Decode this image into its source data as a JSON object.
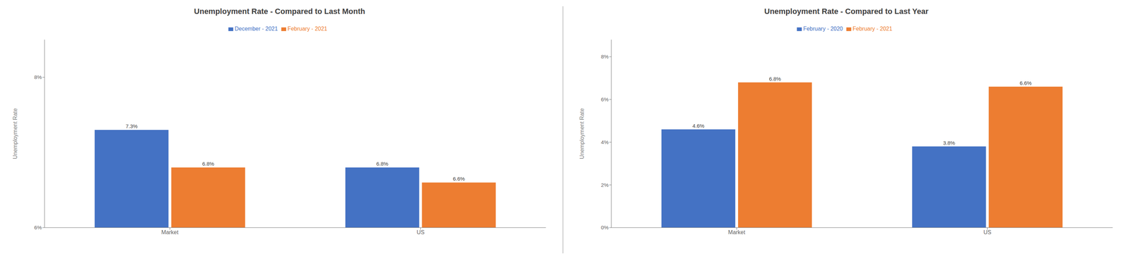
{
  "chart_data": [
    {
      "type": "bar",
      "title": "Unemployment Rate - Compared to Last Month",
      "categories": [
        "Market",
        "US"
      ],
      "series": [
        {
          "name": "December - 2021",
          "color": "#4472C4",
          "values": [
            7.3,
            6.8
          ],
          "value_labels": [
            "7.3%",
            "6.8%"
          ]
        },
        {
          "name": "February - 2021",
          "color": "#ED7D31",
          "values": [
            6.8,
            6.6
          ],
          "value_labels": [
            "6.8%",
            "6.6%"
          ]
        }
      ],
      "ylabel": "Unemployment Rate",
      "ylim": [
        6.0,
        8.5
      ],
      "yticks": [
        {
          "value": 6.0,
          "label": "6%"
        },
        {
          "value": 8.0,
          "label": "8%"
        }
      ],
      "data_labels": true,
      "grid": false,
      "legend": "top"
    },
    {
      "type": "bar",
      "title": "Unemployment Rate - Compared to Last Year",
      "categories": [
        "Market",
        "US"
      ],
      "series": [
        {
          "name": "February - 2020",
          "color": "#4472C4",
          "values": [
            4.6,
            3.8
          ],
          "value_labels": [
            "4.6%",
            "3.8%"
          ]
        },
        {
          "name": "February - 2021",
          "color": "#ED7D31",
          "values": [
            6.8,
            6.6
          ],
          "value_labels": [
            "6.8%",
            "6.6%"
          ]
        }
      ],
      "ylabel": "Unemployment Rate",
      "ylim": [
        0.0,
        8.8
      ],
      "yticks": [
        {
          "value": 0.0,
          "label": "0%"
        },
        {
          "value": 2.0,
          "label": "2%"
        },
        {
          "value": 4.0,
          "label": "4%"
        },
        {
          "value": 6.0,
          "label": "6%"
        },
        {
          "value": 8.0,
          "label": "8%"
        }
      ],
      "data_labels": true,
      "grid": false,
      "legend": "top"
    }
  ]
}
